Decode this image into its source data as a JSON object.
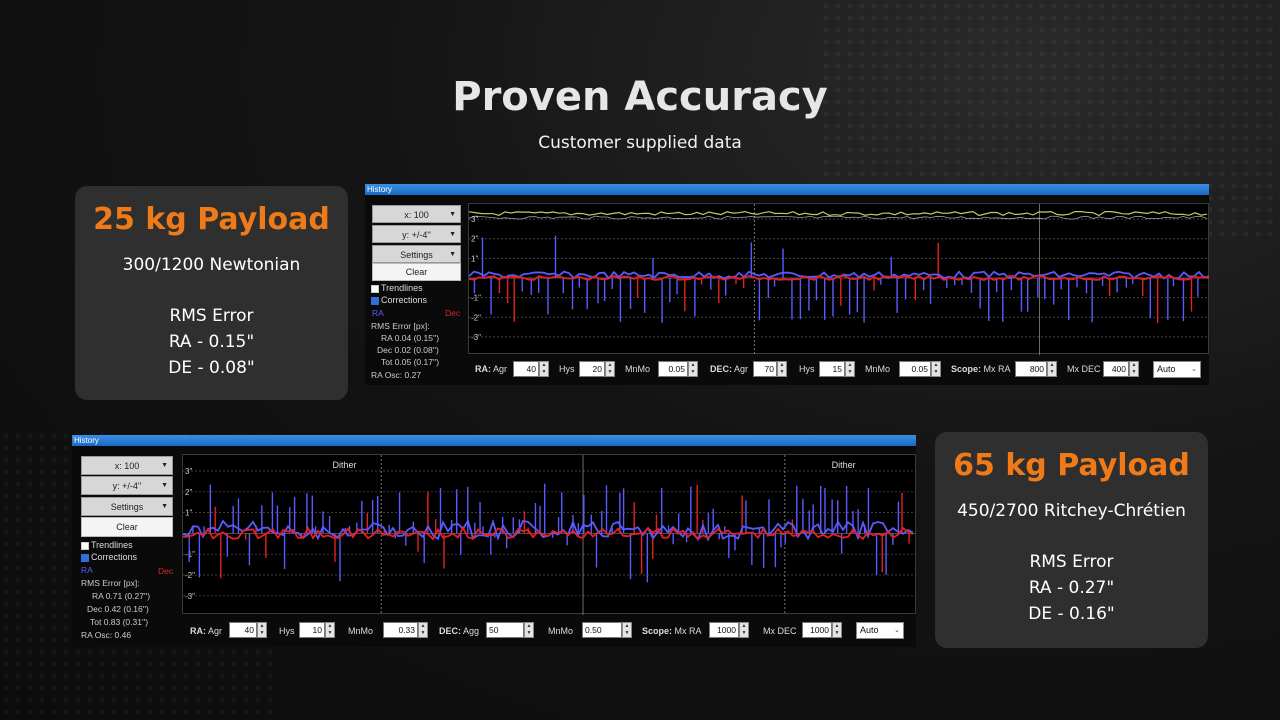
{
  "title": "Proven Accuracy",
  "subtitle": "Customer supplied data",
  "cards": [
    {
      "payload": "25 kg Payload",
      "scope": "300/1200 Newtonian",
      "rms_title": "RMS Error",
      "ra": "RA - 0.15\"",
      "de": "DE - 0.08\""
    },
    {
      "payload": "65 kg Payload",
      "scope": "450/2700 Ritchey-Chrétien",
      "rms_title": "RMS Error",
      "ra": "RA - 0.27\"",
      "de": "DE - 0.16\""
    }
  ],
  "histories": [
    {
      "window_title": "History",
      "x_scale": "x: 100",
      "y_scale": "y: +/-4''",
      "settings": "Settings",
      "clear": "Clear",
      "trendlines": "Trendlines",
      "trendlines_checked": false,
      "corrections": "Corrections",
      "corrections_checked": true,
      "ra_label": "RA",
      "dec_label": "Dec",
      "rms_header": "RMS Error [px]:",
      "rms_ra": "RA 0.04 (0.15'')",
      "rms_dec": "Dec 0.02 (0.08'')",
      "rms_tot": "Tot 0.05 (0.17'')",
      "ra_osc": "RA Osc: 0.27",
      "y_ticks": [
        "3\"",
        "2\"",
        "1\"",
        "-1\"",
        "-2\"",
        "-3\""
      ],
      "dither_labels": [],
      "fields": {
        "ra_label": "RA:",
        "ra_agr_label": "Agr",
        "ra_agr": "40",
        "ra_hys_label": "Hys",
        "ra_hys": "20",
        "ra_mnmo_label": "MnMo",
        "ra_mnmo": "0.05",
        "dec_label": "DEC:",
        "dec_agr_label": "Agr",
        "dec_agr": "70",
        "dec_hys_label": "Hys",
        "dec_hys": "15",
        "dec_mnmo_label": "MnMo",
        "dec_mnmo": "0.05",
        "scope_label": "Scope:",
        "mx_ra_label": "Mx RA",
        "mx_ra": "800",
        "mx_dec_label": "Mx DEC",
        "mx_dec": "400",
        "mode": "Auto"
      }
    },
    {
      "window_title": "History",
      "x_scale": "x: 100",
      "y_scale": "y: +/-4''",
      "settings": "Settings",
      "clear": "Clear",
      "trendlines": "Trendlines",
      "trendlines_checked": false,
      "corrections": "Corrections",
      "corrections_checked": true,
      "ra_label": "RA",
      "dec_label": "Dec",
      "rms_header": "RMS Error [px]:",
      "rms_ra": "RA 0.71 (0.27'')",
      "rms_dec": "Dec 0.42 (0.16'')",
      "rms_tot": "Tot 0.83 (0.31'')",
      "ra_osc": "RA Osc: 0.46",
      "y_ticks": [
        "3\"",
        "2\"",
        "1\"",
        "-1\"",
        "-2\"",
        "-3\""
      ],
      "dither_labels": [
        "Dither",
        "Dither"
      ],
      "fields": {
        "ra_label": "RA:",
        "ra_agr_label": "Agr",
        "ra_agr": "40",
        "ra_hys_label": "Hys",
        "ra_hys": "10",
        "ra_mnmo_label": "MnMo",
        "ra_mnmo": "0.33",
        "dec_label": "DEC:",
        "dec_agr_label": "Agg",
        "dec_agr": "50",
        "dec_mnmo_label": "MnMo",
        "dec_mnmo": "0.50",
        "scope_label": "Scope:",
        "mx_ra_label": "Mx RA",
        "mx_ra": "1000",
        "mx_dec_label": "Mx DEC",
        "mx_dec": "1000",
        "mode": "Auto"
      }
    }
  ],
  "colors": {
    "accent": "#f07a18",
    "ra_line": "#5a5aff",
    "dec_line": "#e52222",
    "snr_line": "#c8c860",
    "title_bar": "#1f7bd6"
  }
}
